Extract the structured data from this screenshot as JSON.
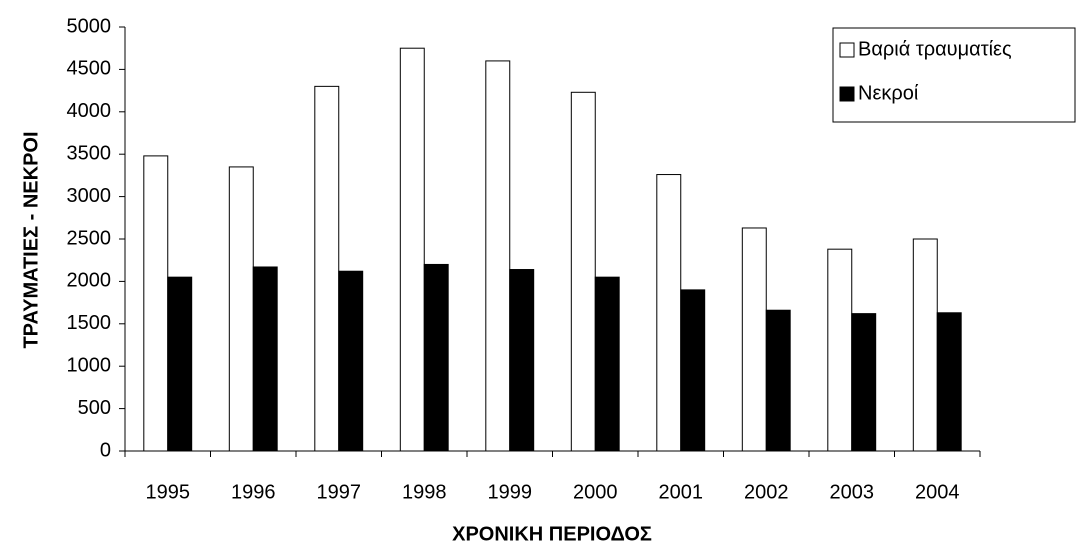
{
  "chart_data": {
    "type": "bar",
    "x_label": "ΧΡΟΝΙΚΗ ΠΕΡΙΟΔΟΣ",
    "y_label": "ΤΡΑΥΜΑΤΙΕΣ - ΝΕΚΡΟΙ",
    "categories": [
      "1995",
      "1996",
      "1997",
      "1998",
      "1999",
      "2000",
      "2001",
      "2002",
      "2003",
      "2004"
    ],
    "series": [
      {
        "name": "Βαριά τραυματίες",
        "color": "#ffffff",
        "values": [
          3480,
          3350,
          4300,
          4750,
          4600,
          4230,
          3260,
          2630,
          2380,
          2500
        ]
      },
      {
        "name": "Νεκροί",
        "color": "#000000",
        "values": [
          2050,
          2170,
          2120,
          2200,
          2140,
          2050,
          1900,
          1660,
          1620,
          1630
        ]
      }
    ],
    "ylim": [
      0,
      5000
    ],
    "yticks": [
      0,
      500,
      1000,
      1500,
      2000,
      2500,
      3000,
      3500,
      4000,
      4500,
      5000
    ],
    "grid": false
  }
}
